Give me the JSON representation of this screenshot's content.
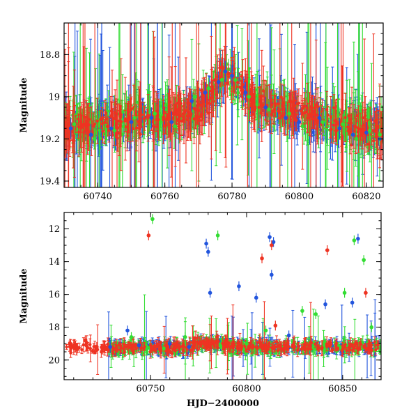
{
  "chart_data": [
    {
      "type": "scatter",
      "panel": "top",
      "title": "",
      "xlabel": "",
      "ylabel": "Magnitude",
      "xlim": [
        60730,
        60825
      ],
      "ylim": [
        19.43,
        18.65
      ],
      "y_inverted": true,
      "xticks": [
        60740,
        60760,
        60780,
        60800,
        60820
      ],
      "yticks": [
        18.8,
        19,
        19.2,
        19.4
      ],
      "error_bars": true,
      "grid": false,
      "series": [
        {
          "color": "#2255dd",
          "x": [
            60732,
            60738,
            60744,
            60750,
            60756,
            60762,
            60768,
            60772,
            60776,
            60778,
            60780,
            60784,
            60790,
            60796,
            60800,
            60806,
            60812,
            60816,
            60820,
            60824
          ],
          "y": [
            19.15,
            19.18,
            19.15,
            19.12,
            19.1,
            19.12,
            19.02,
            18.98,
            18.93,
            18.88,
            18.9,
            18.98,
            19.05,
            19.1,
            19.12,
            19.1,
            19.15,
            19.18,
            19.17,
            19.2
          ]
        },
        {
          "color": "#33dd33",
          "x": [
            60733,
            60739,
            60745,
            60751,
            60757,
            60763,
            60769,
            60773,
            60777,
            60779,
            60781,
            60785,
            60791,
            60797,
            60801,
            60807,
            60813,
            60817,
            60821,
            60824
          ],
          "y": [
            19.13,
            19.2,
            19.16,
            19.1,
            19.08,
            19.14,
            19.0,
            18.96,
            18.92,
            18.87,
            18.92,
            19.0,
            19.06,
            19.08,
            19.14,
            19.12,
            19.13,
            19.2,
            19.16,
            19.18
          ]
        },
        {
          "color": "#ee3322",
          "x": [
            60731,
            60737,
            60743,
            60749,
            60755,
            60761,
            60767,
            60771,
            60775,
            60777,
            60779,
            60783,
            60789,
            60795,
            60799,
            60805,
            60811,
            60815,
            60819,
            60823
          ],
          "y": [
            19.16,
            19.17,
            19.14,
            19.11,
            19.09,
            19.1,
            19.03,
            18.97,
            18.92,
            18.86,
            18.89,
            18.97,
            19.04,
            19.09,
            19.11,
            19.11,
            19.16,
            19.17,
            19.16,
            19.19
          ]
        }
      ]
    },
    {
      "type": "scatter",
      "panel": "bottom",
      "title": "",
      "xlabel": "HJD−2400000",
      "ylabel": "Magnitude",
      "xlim": [
        60705,
        60870
      ],
      "ylim": [
        21.2,
        11.0
      ],
      "y_inverted": true,
      "xticks": [
        60750,
        60800,
        60850
      ],
      "yticks": [
        12,
        14,
        16,
        18,
        20
      ],
      "error_bars": true,
      "grid": false,
      "series": [
        {
          "color": "#2255dd",
          "x": [
            60729,
            60738,
            60744,
            60760,
            60770,
            60779,
            60780,
            60781,
            60796,
            60805,
            60812,
            60813,
            60814,
            60822,
            60841,
            60855,
            60858
          ],
          "y": [
            19.2,
            18.2,
            19.1,
            19.0,
            19.2,
            12.9,
            13.4,
            15.9,
            15.5,
            16.2,
            12.5,
            14.8,
            12.8,
            18.5,
            16.6,
            16.5,
            12.6
          ]
        },
        {
          "color": "#33dd33",
          "x": [
            60740,
            60751,
            60757,
            60768,
            60785,
            60800,
            60810,
            60829,
            60836,
            60851,
            60856,
            60861,
            60865
          ],
          "y": [
            18.6,
            11.4,
            19.3,
            18.6,
            12.4,
            19.0,
            18.2,
            17.0,
            17.2,
            15.9,
            12.7,
            13.9,
            18.0
          ]
        },
        {
          "color": "#ee3322",
          "x": [
            60708,
            60712,
            60716,
            60722,
            60749,
            60758,
            60778,
            60808,
            60813,
            60815,
            60842,
            60862
          ],
          "y": [
            19.0,
            19.3,
            18.8,
            19.2,
            12.4,
            19.1,
            19.0,
            13.8,
            13.0,
            17.9,
            13.3,
            15.9
          ]
        }
      ]
    }
  ]
}
